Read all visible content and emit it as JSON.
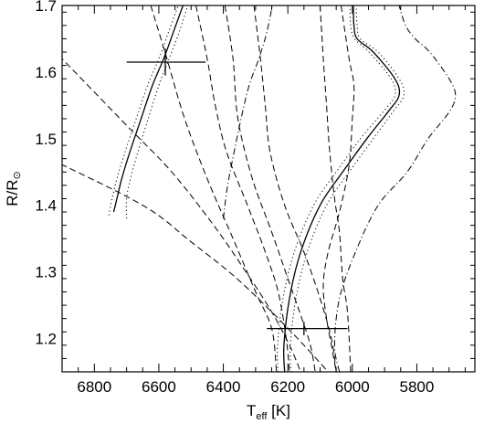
{
  "chart_data": {
    "type": "line",
    "title": "",
    "x_axis": {
      "label_main": "T",
      "label_sub": "eff",
      "label_unit": " [K]",
      "range": [
        6900,
        5620
      ],
      "reversed": true,
      "ticks": [
        6800,
        6600,
        6400,
        6200,
        6000,
        5800
      ],
      "tick_labels": [
        "6800",
        "6600",
        "6400",
        "6200",
        "6000",
        "5800"
      ],
      "minor_step": 50
    },
    "y_axis": {
      "label_main": "R/R",
      "label_symbol": "⊙",
      "range": [
        1.15,
        1.7
      ],
      "ticks": [
        1.2,
        1.3,
        1.4,
        1.5,
        1.6,
        1.7
      ],
      "tick_labels": [
        "1.2",
        "1.3",
        "1.4",
        "1.5",
        "1.6",
        "1.7"
      ],
      "minor_step": 0.02
    },
    "grid": false,
    "legend": "none",
    "series": [
      {
        "style": "solid",
        "group": "track-1",
        "points": [
          [
            6740,
            1.39
          ],
          [
            6730,
            1.41
          ],
          [
            6715,
            1.44
          ],
          [
            6690,
            1.48
          ],
          [
            6655,
            1.53
          ],
          [
            6620,
            1.58
          ],
          [
            6585,
            1.62
          ],
          [
            6555,
            1.66
          ],
          [
            6525,
            1.7
          ]
        ]
      },
      {
        "style": "dotted",
        "group": "track-1",
        "points": [
          [
            6755,
            1.385
          ],
          [
            6745,
            1.41
          ],
          [
            6730,
            1.44
          ],
          [
            6705,
            1.48
          ],
          [
            6670,
            1.53
          ],
          [
            6635,
            1.58
          ],
          [
            6600,
            1.62
          ],
          [
            6570,
            1.66
          ],
          [
            6540,
            1.7
          ]
        ]
      },
      {
        "style": "dotted",
        "group": "track-1",
        "points": [
          [
            6700,
            1.38
          ],
          [
            6700,
            1.41
          ],
          [
            6688,
            1.44
          ],
          [
            6665,
            1.48
          ],
          [
            6633,
            1.53
          ],
          [
            6600,
            1.58
          ],
          [
            6568,
            1.62
          ],
          [
            6537,
            1.66
          ],
          [
            6510,
            1.7
          ]
        ]
      },
      {
        "style": "dash-dot",
        "group": "track-1",
        "points": [
          [
            6400,
            1.38
          ],
          [
            6395,
            1.4
          ],
          [
            6390,
            1.42
          ],
          [
            6383,
            1.44
          ],
          [
            6375,
            1.46
          ],
          [
            6345,
            1.53
          ],
          [
            6320,
            1.58
          ],
          [
            6290,
            1.62
          ],
          [
            6265,
            1.66
          ],
          [
            6248,
            1.7
          ]
        ]
      },
      {
        "style": "solid",
        "group": "track-2",
        "points": [
          [
            6210,
            1.15
          ],
          [
            6212,
            1.19
          ],
          [
            6195,
            1.26
          ],
          [
            6160,
            1.33
          ],
          [
            6100,
            1.4
          ],
          [
            6030,
            1.45
          ],
          [
            5955,
            1.5
          ],
          [
            5890,
            1.54
          ],
          [
            5855,
            1.565
          ],
          [
            5868,
            1.59
          ],
          [
            5935,
            1.63
          ],
          [
            5985,
            1.65
          ],
          [
            5995,
            1.67
          ],
          [
            5997,
            1.7
          ]
        ]
      },
      {
        "style": "dotted",
        "group": "track-2",
        "points": [
          [
            6230,
            1.15
          ],
          [
            6232,
            1.19
          ],
          [
            6215,
            1.26
          ],
          [
            6180,
            1.33
          ],
          [
            6120,
            1.4
          ],
          [
            6050,
            1.45
          ],
          [
            5975,
            1.5
          ],
          [
            5905,
            1.54
          ],
          [
            5868,
            1.565
          ],
          [
            5880,
            1.59
          ],
          [
            5948,
            1.63
          ],
          [
            5993,
            1.65
          ],
          [
            6005,
            1.67
          ],
          [
            6007,
            1.7
          ]
        ]
      },
      {
        "style": "dotted",
        "group": "track-2",
        "points": [
          [
            6190,
            1.15
          ],
          [
            6192,
            1.19
          ],
          [
            6175,
            1.26
          ],
          [
            6140,
            1.33
          ],
          [
            6080,
            1.4
          ],
          [
            6010,
            1.45
          ],
          [
            5935,
            1.5
          ],
          [
            5875,
            1.54
          ],
          [
            5840,
            1.565
          ],
          [
            5855,
            1.59
          ],
          [
            5920,
            1.63
          ],
          [
            5975,
            1.65
          ],
          [
            5985,
            1.67
          ],
          [
            5988,
            1.7
          ]
        ]
      },
      {
        "style": "dash-dot",
        "group": "track-2",
        "points": [
          [
            6040,
            1.15
          ],
          [
            6055,
            1.19
          ],
          [
            6040,
            1.26
          ],
          [
            5990,
            1.33
          ],
          [
            5920,
            1.4
          ],
          [
            5830,
            1.45
          ],
          [
            5765,
            1.5
          ],
          [
            5700,
            1.54
          ],
          [
            5680,
            1.565
          ],
          [
            5700,
            1.59
          ],
          [
            5760,
            1.63
          ],
          [
            5805,
            1.65
          ],
          [
            5835,
            1.67
          ],
          [
            5855,
            1.7
          ]
        ]
      },
      {
        "style": "dashed",
        "group": "iso",
        "points": [
          [
            6960,
            1.475
          ],
          [
            6650,
            1.4
          ],
          [
            6500,
            1.345
          ],
          [
            6370,
            1.295
          ],
          [
            6250,
            1.24
          ],
          [
            6150,
            1.19
          ],
          [
            6075,
            1.15
          ]
        ]
      },
      {
        "style": "dashed",
        "group": "iso",
        "points": [
          [
            6910,
            1.625
          ],
          [
            6700,
            1.52
          ],
          [
            6560,
            1.45
          ],
          [
            6430,
            1.37
          ],
          [
            6330,
            1.3
          ],
          [
            6250,
            1.24
          ],
          [
            6195,
            1.19
          ],
          [
            6160,
            1.15
          ]
        ]
      },
      {
        "style": "dashed",
        "group": "iso",
        "points": [
          [
            6625,
            1.7
          ],
          [
            6575,
            1.62
          ],
          [
            6520,
            1.53
          ],
          [
            6450,
            1.44
          ],
          [
            6370,
            1.35
          ],
          [
            6300,
            1.27
          ],
          [
            6250,
            1.215
          ],
          [
            6235,
            1.15
          ]
        ]
      },
      {
        "style": "dashed",
        "group": "iso",
        "points": [
          [
            6485,
            1.7
          ],
          [
            6450,
            1.62
          ],
          [
            6425,
            1.55
          ],
          [
            6390,
            1.48
          ],
          [
            6325,
            1.4
          ],
          [
            6270,
            1.33
          ],
          [
            6230,
            1.27
          ],
          [
            6205,
            1.2
          ],
          [
            6195,
            1.15
          ]
        ]
      },
      {
        "style": "dashed",
        "group": "iso",
        "points": [
          [
            6395,
            1.7
          ],
          [
            6370,
            1.62
          ],
          [
            6355,
            1.53
          ],
          [
            6310,
            1.44
          ],
          [
            6250,
            1.36
          ],
          [
            6200,
            1.29
          ],
          [
            6160,
            1.235
          ],
          [
            6130,
            1.19
          ],
          [
            6115,
            1.15
          ]
        ]
      },
      {
        "style": "dashed",
        "group": "iso",
        "points": [
          [
            6305,
            1.7
          ],
          [
            6285,
            1.62
          ],
          [
            6270,
            1.55
          ],
          [
            6255,
            1.48
          ],
          [
            6210,
            1.4
          ],
          [
            6150,
            1.33
          ],
          [
            6100,
            1.26
          ],
          [
            6065,
            1.2
          ],
          [
            6050,
            1.15
          ]
        ]
      },
      {
        "style": "dashed",
        "group": "iso",
        "points": [
          [
            6100,
            1.7
          ],
          [
            6090,
            1.62
          ],
          [
            6080,
            1.55
          ],
          [
            6070,
            1.48
          ],
          [
            6055,
            1.41
          ],
          [
            6040,
            1.36
          ],
          [
            6030,
            1.29
          ],
          [
            6015,
            1.24
          ],
          [
            6005,
            1.15
          ]
        ]
      },
      {
        "style": "dashed",
        "group": "iso",
        "points": [
          [
            6035,
            1.7
          ],
          [
            6010,
            1.62
          ],
          [
            5995,
            1.58
          ],
          [
            6000,
            1.53
          ],
          [
            6010,
            1.46
          ],
          [
            6040,
            1.39
          ],
          [
            6075,
            1.33
          ],
          [
            6090,
            1.28
          ],
          [
            6080,
            1.23
          ],
          [
            6065,
            1.19
          ],
          [
            6050,
            1.15
          ]
        ]
      }
    ],
    "error_bars": [
      {
        "x": 6580,
        "y": 1.615,
        "x_low": 6700,
        "x_high": 6455,
        "y_low": 1.595,
        "y_high": 1.635
      },
      {
        "x": 6150,
        "y": 1.215,
        "x_low": 6265,
        "x_high": 6015,
        "y_low": 1.205,
        "y_high": 1.225
      }
    ]
  }
}
